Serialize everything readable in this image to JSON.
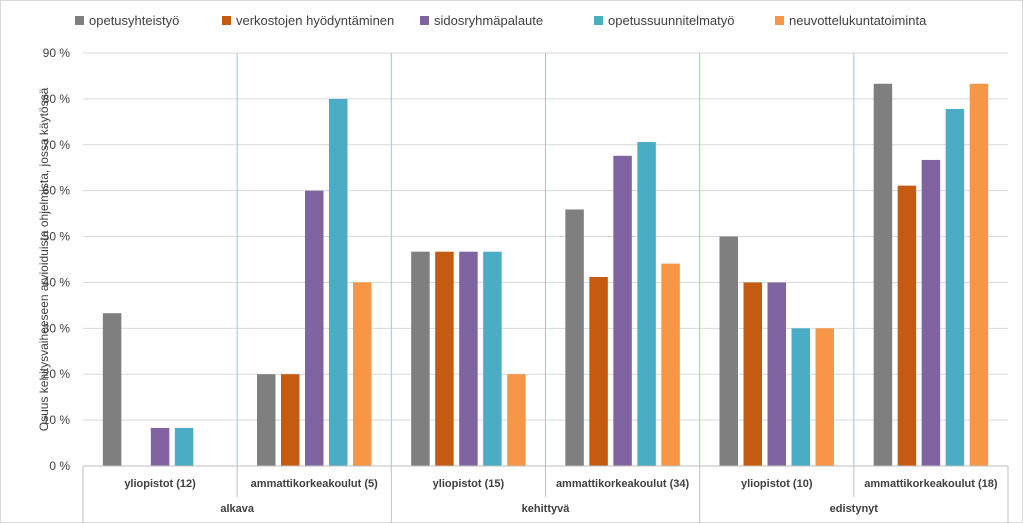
{
  "chart_data": {
    "type": "bar",
    "title": "",
    "ylabel": "Osuus kehitysvaiheeseen arvioiduista ohjelmista, jossa käytössä",
    "ylim": [
      0,
      90
    ],
    "y_ticks": [
      "0 %",
      "10 %",
      "20 %",
      "30 %",
      "40 %",
      "50 %",
      "60 %",
      "70 %",
      "80 %",
      "90 %"
    ],
    "grid": true,
    "legend_position": "top",
    "groups": [
      {
        "label": "alkava",
        "categories": [
          "yliopistot (12)",
          "ammattikorkeakoulut (5)"
        ]
      },
      {
        "label": "kehittyvä",
        "categories": [
          "yliopistot (15)",
          "ammattikorkeakoulut (34)"
        ]
      },
      {
        "label": "edistynyt",
        "categories": [
          "yliopistot (10)",
          "ammattikorkeakoulut (18)"
        ]
      }
    ],
    "categories": [
      "yliopistot (12)",
      "ammattikorkeakoulut (5)",
      "yliopistot (15)",
      "ammattikorkeakoulut (34)",
      "yliopistot (10)",
      "ammattikorkeakoulut (18)"
    ],
    "series": [
      {
        "name": "opetusyhteistyö",
        "color": "#7f7f7f",
        "values": [
          33.3,
          20,
          46.7,
          55.9,
          50,
          83.3
        ]
      },
      {
        "name": "verkostojen hyödyntäminen",
        "color": "#c55a11",
        "values": [
          0,
          20,
          46.7,
          41.2,
          40,
          61.1
        ]
      },
      {
        "name": "sidosryhmäpalaute",
        "color": "#8064a2",
        "values": [
          8.3,
          60,
          46.7,
          67.6,
          40,
          66.7
        ]
      },
      {
        "name": "opetussuunnitelmatyö",
        "color": "#4bacc6",
        "values": [
          8.3,
          80,
          46.7,
          70.6,
          30,
          77.8
        ]
      },
      {
        "name": "neuvottelukuntatoiminta",
        "color": "#f79646",
        "values": [
          0,
          40,
          20,
          44.1,
          30,
          83.3
        ]
      }
    ]
  }
}
